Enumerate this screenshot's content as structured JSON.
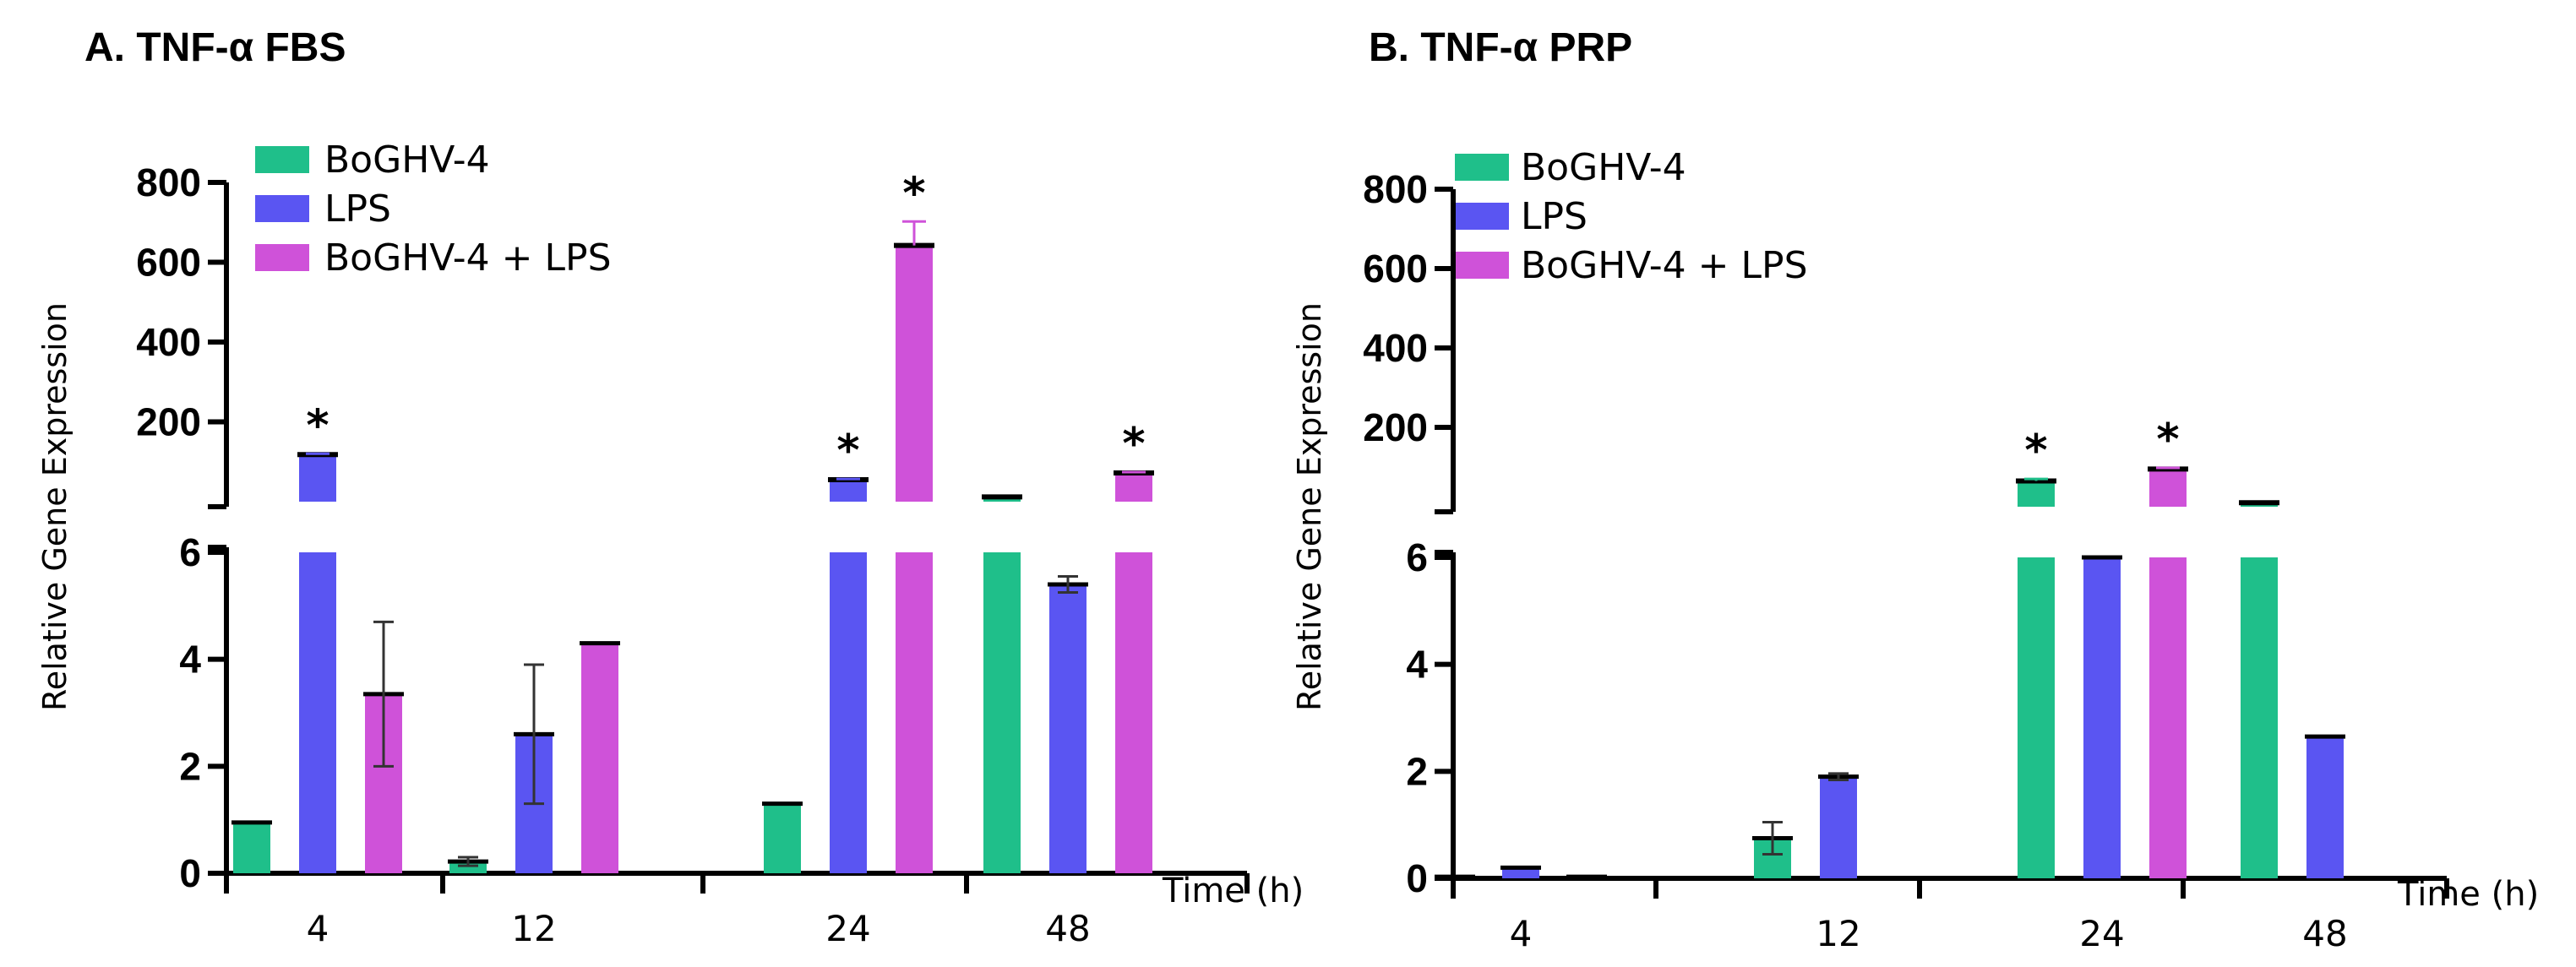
{
  "chart_data": [
    {
      "type": "bar",
      "title": "A. TNF-α FBS",
      "xlabel": "Time (h)",
      "ylabel": "Relative Gene Expression",
      "categories": [
        "4",
        "12",
        "24",
        "48"
      ],
      "y_axis": {
        "broken": true,
        "lower_range": [
          0,
          6
        ],
        "lower_ticks": [
          "0",
          "2",
          "4",
          "6"
        ],
        "upper_range": [
          0,
          800
        ],
        "upper_ticks": [
          "200",
          "400",
          "600",
          "800"
        ]
      },
      "legend": [
        "BoGHV-4",
        "LPS",
        "BoGHV-4 + LPS"
      ],
      "colors": [
        "#1fbf8a",
        "#5a55f2",
        "#cf52d9"
      ],
      "series": [
        {
          "name": "BoGHV-4",
          "values": [
            0.95,
            0.22,
            1.3,
            12
          ],
          "errors": [
            0.03,
            0.08,
            0.03,
            0
          ]
        },
        {
          "name": "LPS",
          "values": [
            118,
            2.6,
            55,
            5.4
          ],
          "errors": [
            2,
            1.3,
            2,
            0.15
          ]
        },
        {
          "name": "BoGHV-4 + LPS",
          "values": [
            3.35,
            4.3,
            642,
            72
          ],
          "errors": [
            1.35,
            0.02,
            60,
            2
          ]
        }
      ],
      "significance": [
        {
          "category": "4",
          "series": "LPS",
          "mark": "*"
        },
        {
          "category": "24",
          "series": "LPS",
          "mark": "*"
        },
        {
          "category": "24",
          "series": "BoGHV-4 + LPS",
          "mark": "*"
        },
        {
          "category": "48",
          "series": "BoGHV-4 + LPS",
          "mark": "*"
        }
      ]
    },
    {
      "type": "bar",
      "title": "B. TNF-α PRP",
      "xlabel": "Time (h)",
      "ylabel": "Relative Gene Expression",
      "categories": [
        "4",
        "12",
        "24",
        "48"
      ],
      "y_axis": {
        "broken": true,
        "lower_range": [
          0,
          6
        ],
        "lower_ticks": [
          "0",
          "2",
          "4",
          "6"
        ],
        "upper_range": [
          0,
          800
        ],
        "upper_ticks": [
          "200",
          "400",
          "600",
          "800"
        ]
      },
      "legend": [
        "BoGHV-4",
        "LPS",
        "BoGHV-4 + LPS"
      ],
      "colors": [
        "#1fbf8a",
        "#5a55f2",
        "#cf52d9"
      ],
      "series": [
        {
          "name": "BoGHV-4",
          "values": [
            0.03,
            0.75,
            65,
            10
          ],
          "errors": [
            0,
            0.3,
            5,
            0
          ]
        },
        {
          "name": "LPS",
          "values": [
            0.2,
            1.9,
            6,
            2.65
          ],
          "errors": [
            0.04,
            0.06,
            0,
            0.03
          ]
        },
        {
          "name": "BoGHV-4 + LPS",
          "values": [
            0.03,
            0,
            95,
            0
          ],
          "errors": [
            0,
            0,
            3,
            0
          ]
        }
      ],
      "significance": [
        {
          "category": "24",
          "series": "BoGHV-4",
          "mark": "*"
        },
        {
          "category": "24",
          "series": "BoGHV-4 + LPS",
          "mark": "*"
        }
      ]
    }
  ]
}
